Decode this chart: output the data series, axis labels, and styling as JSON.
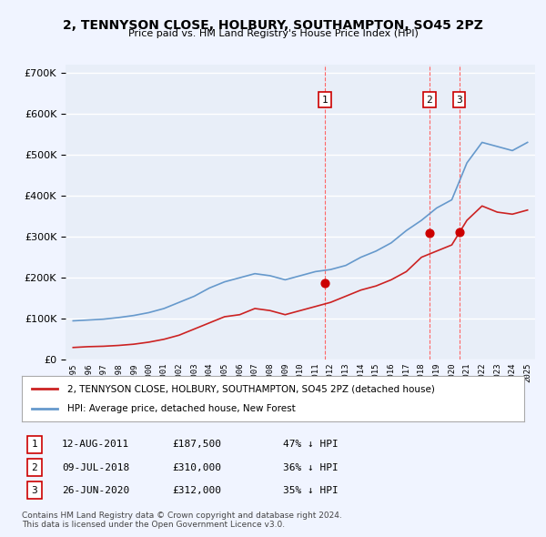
{
  "title": "2, TENNYSON CLOSE, HOLBURY, SOUTHAMPTON, SO45 2PZ",
  "subtitle": "Price paid vs. HM Land Registry's House Price Index (HPI)",
  "bg_color": "#f0f4ff",
  "plot_bg_color": "#e8eef8",
  "grid_color": "#ffffff",
  "sale_dates_num": [
    2011.617,
    2018.519,
    2020.486
  ],
  "sale_prices": [
    187500,
    310000,
    312000
  ],
  "sale_labels": [
    "1",
    "2",
    "3"
  ],
  "vline_color": "#ff6666",
  "sale_marker_color": "#cc0000",
  "legend_label_red": "2, TENNYSON CLOSE, HOLBURY, SOUTHAMPTON, SO45 2PZ (detached house)",
  "legend_label_blue": "HPI: Average price, detached house, New Forest",
  "table_rows": [
    [
      "1",
      "12-AUG-2011",
      "£187,500",
      "47% ↓ HPI"
    ],
    [
      "2",
      "09-JUL-2018",
      "£310,000",
      "36% ↓ HPI"
    ],
    [
      "3",
      "26-JUN-2020",
      "£312,000",
      "35% ↓ HPI"
    ]
  ],
  "footer": "Contains HM Land Registry data © Crown copyright and database right 2024.\nThis data is licensed under the Open Government Licence v3.0.",
  "hpi_years": [
    1995,
    1996,
    1997,
    1998,
    1999,
    2000,
    2001,
    2002,
    2003,
    2004,
    2005,
    2006,
    2007,
    2008,
    2009,
    2010,
    2011,
    2012,
    2013,
    2014,
    2015,
    2016,
    2017,
    2018,
    2019,
    2020,
    2021,
    2022,
    2023,
    2024,
    2025
  ],
  "hpi_values": [
    95000,
    97000,
    99000,
    103000,
    108000,
    115000,
    125000,
    140000,
    155000,
    175000,
    190000,
    200000,
    210000,
    205000,
    195000,
    205000,
    215000,
    220000,
    230000,
    250000,
    265000,
    285000,
    315000,
    340000,
    370000,
    390000,
    480000,
    530000,
    520000,
    510000,
    530000
  ],
  "red_hpi_years": [
    1995,
    1996,
    1997,
    1998,
    1999,
    2000,
    2001,
    2002,
    2003,
    2004,
    2005,
    2006,
    2007,
    2008,
    2009,
    2010,
    2011,
    2012,
    2013,
    2014,
    2015,
    2016,
    2017,
    2018,
    2019,
    2020,
    2021,
    2022,
    2023,
    2024,
    2025
  ],
  "red_hpi_values": [
    30000,
    32000,
    33000,
    35000,
    38000,
    43000,
    50000,
    60000,
    75000,
    90000,
    105000,
    110000,
    125000,
    120000,
    110000,
    120000,
    130000,
    140000,
    155000,
    170000,
    180000,
    195000,
    215000,
    250000,
    265000,
    280000,
    340000,
    375000,
    360000,
    355000,
    365000
  ],
  "ylim": [
    0,
    720000
  ],
  "xlim": [
    1994.5,
    2025.5
  ],
  "line_color_blue": "#6699cc",
  "line_color_red": "#cc2222"
}
